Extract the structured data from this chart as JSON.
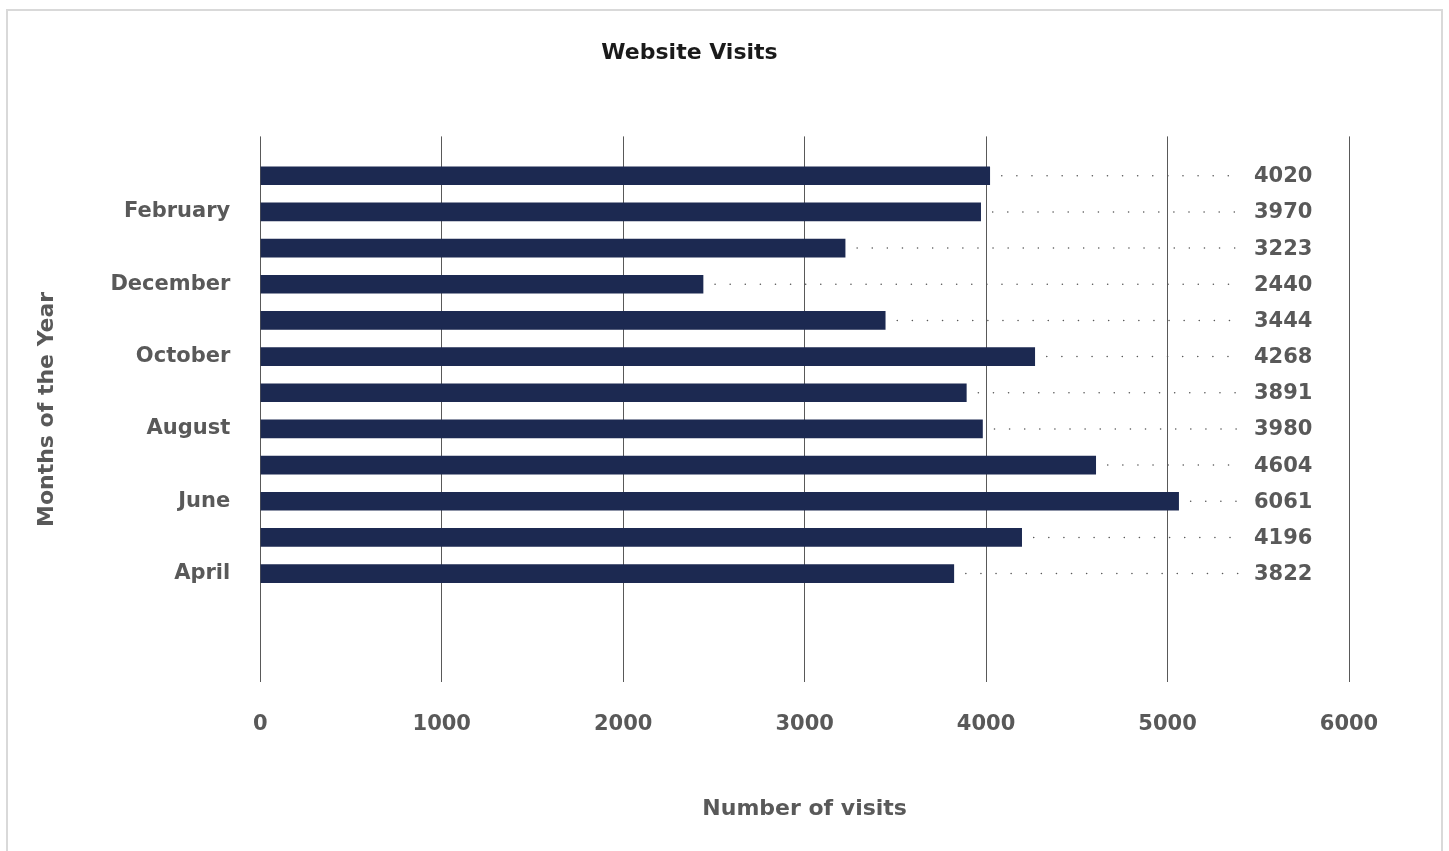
{
  "chart_data": {
    "type": "bar",
    "orientation": "horizontal",
    "title": "Website Visits",
    "xlabel": "Number of visits",
    "ylabel": "Months of the Year",
    "categories": [
      null,
      "February",
      null,
      "December",
      null,
      "October",
      null,
      "August",
      null,
      "June",
      null,
      "April"
    ],
    "values": [
      4020,
      3970,
      3223,
      2440,
      3444,
      4268,
      3891,
      3980,
      4604,
      5061,
      4196,
      3822
    ],
    "value_labels": [
      "4020",
      "3970",
      "3223",
      "2440",
      "3444",
      "4268",
      "3891",
      "3980",
      "4604",
      null,
      "4196",
      "3822"
    ],
    "annotations": [
      "6061"
    ],
    "color": "#1c2951",
    "xlim": [
      0,
      6000
    ],
    "xticks": [
      0,
      1000,
      2000,
      3000,
      4000,
      5000,
      6000
    ],
    "grid": "x",
    "legend": false
  }
}
